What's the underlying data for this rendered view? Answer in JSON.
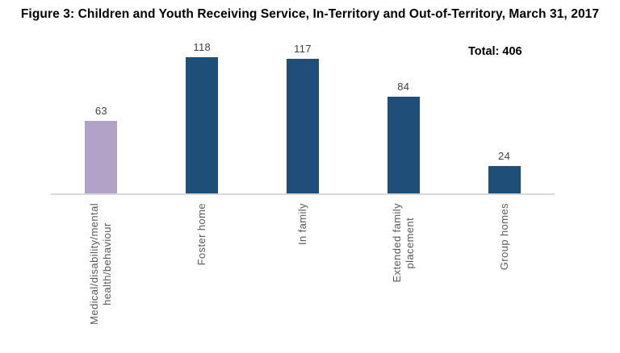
{
  "chart": {
    "title": "Figure 3: Children and Youth Receiving Service, In-Territory and Out-of-Territory, March 31, 2017",
    "total_label": "Total: 406"
  },
  "chart_data": {
    "type": "bar",
    "title": "Figure 3: Children and Youth Receiving Service, In-Territory and Out-of-Territory, March 31, 2017",
    "categories": [
      "Medical/disability/mental\nhealth/behaviour",
      "Foster home",
      "In family",
      "Extended family\nplacement",
      "Group homes"
    ],
    "values": [
      63,
      118,
      117,
      84,
      24
    ],
    "annotations": [
      "Total: 406"
    ],
    "total": 406,
    "xlabel": "",
    "ylabel": "",
    "grid": false,
    "legend": false,
    "label_rotation_degrees": 90,
    "bar_colors": [
      "#b3a2c7",
      "#1f4e79",
      "#1f4e79",
      "#1f4e79",
      "#1f4e79"
    ],
    "axis_line_color": "#d9d9d9",
    "category_label_color": "#595959",
    "value_label_color": "#404040",
    "background_color": "#ffffff"
  }
}
